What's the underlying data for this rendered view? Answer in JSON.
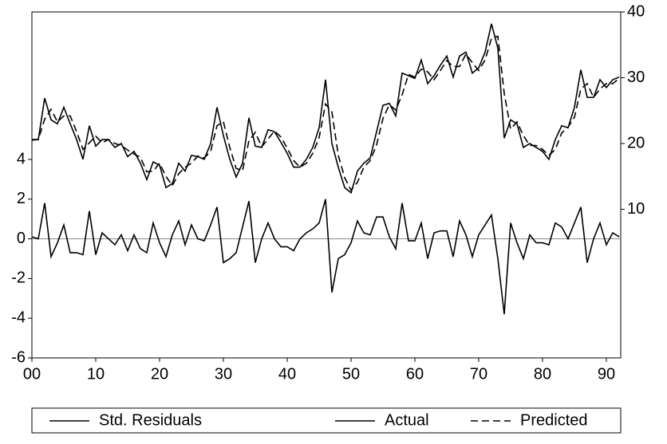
{
  "chart_data": {
    "type": "line",
    "x": [
      0,
      1,
      2,
      3,
      4,
      5,
      6,
      7,
      8,
      9,
      10,
      11,
      12,
      13,
      14,
      15,
      16,
      17,
      18,
      19,
      20,
      21,
      22,
      23,
      24,
      25,
      26,
      27,
      28,
      29,
      30,
      31,
      32,
      33,
      34,
      35,
      36,
      37,
      38,
      39,
      40,
      41,
      42,
      43,
      44,
      45,
      46,
      47,
      48,
      49,
      50,
      51,
      52,
      53,
      54,
      55,
      56,
      57,
      58,
      59,
      60,
      61,
      62,
      63,
      64,
      65,
      66,
      67,
      68,
      69,
      70,
      71,
      72,
      73,
      74,
      75,
      76,
      77,
      78,
      79,
      80,
      81,
      82,
      83,
      84,
      85,
      86,
      87,
      88,
      89,
      90,
      91,
      92
    ],
    "xlim": [
      0,
      92.25
    ],
    "xticks": [
      {
        "value": 0,
        "label": "00"
      },
      10,
      20,
      30,
      40,
      50,
      60,
      70,
      80,
      90
    ],
    "ylim": [
      -6,
      11.43
    ],
    "yticks": [
      -6,
      -4,
      -2,
      0,
      2,
      4
    ],
    "y2lim": [
      -12.6,
      40
    ],
    "y2ticks": [
      10,
      20,
      30,
      40
    ],
    "legend": "bottom",
    "series": [
      {
        "name": "Std. Residuals",
        "color": "#000000",
        "dash": false,
        "axis": "y",
        "values": [
          0.1,
          0,
          1.8,
          -0.9,
          -0.2,
          0.7,
          -0.7,
          -0.7,
          -0.8,
          1.4,
          -0.8,
          0.3,
          0,
          -0.3,
          0.2,
          -0.6,
          0.2,
          -0.5,
          -0.7,
          0.8,
          -0.2,
          -0.9,
          0.2,
          0.9,
          -0.3,
          0.7,
          0,
          -0.1,
          0.7,
          1.6,
          -1.2,
          -1,
          -0.7,
          0.6,
          1.9,
          -1.2,
          0,
          0.8,
          0,
          -0.4,
          -0.4,
          -0.6,
          0,
          0.3,
          0.5,
          0.8,
          2,
          -2.7,
          -1,
          -0.8,
          -0.2,
          0.9,
          0.3,
          0.2,
          1.1,
          1.1,
          0.1,
          -0.5,
          1.8,
          -0.1,
          -0.1,
          0.8,
          -1,
          0.3,
          0.4,
          0.4,
          -0.9,
          0.9,
          0.2,
          -0.9,
          0.2,
          0.7,
          1.2,
          -1,
          -3.8,
          0.8,
          -0.2,
          -1,
          0.2,
          -0.2,
          -0.2,
          -0.3,
          0.8,
          0.6,
          0,
          0.8,
          1.6,
          -1.2,
          0,
          0.8,
          -0.3,
          0.3,
          0.1
        ]
      },
      {
        "name": "Actual",
        "color": "#000000",
        "dash": false,
        "axis": "y2",
        "values": [
          20.6,
          20.6,
          26.9,
          23.6,
          23,
          25.5,
          23,
          20.6,
          17.6,
          22.7,
          19.6,
          20.6,
          20.6,
          19.4,
          20,
          18,
          18.8,
          17,
          14.5,
          17.2,
          16.7,
          13.3,
          13.9,
          17,
          15.8,
          18.2,
          18,
          17.6,
          20,
          25.5,
          21.2,
          17.6,
          14.9,
          17,
          23.9,
          19.6,
          19.4,
          22.1,
          21.8,
          20.2,
          18.5,
          16.4,
          16.4,
          17.6,
          19.4,
          22.4,
          29.7,
          20,
          16.4,
          13.3,
          12.5,
          15.8,
          17,
          17.8,
          21.8,
          25.8,
          26.1,
          24.2,
          30.7,
          30.3,
          29.9,
          32.7,
          29.1,
          30.3,
          31.9,
          33.3,
          30.1,
          33.3,
          33.9,
          30.7,
          31.5,
          33.9,
          38.2,
          34.5,
          20.8,
          23.6,
          23,
          19.4,
          20,
          19.4,
          18.8,
          17.6,
          20.6,
          22.7,
          22.4,
          25.5,
          31.2,
          27,
          27,
          29.7,
          28.5,
          29.7,
          30.1
        ]
      },
      {
        "name": "Predicted",
        "color": "#000000",
        "dash": true,
        "axis": "y2",
        "values": [
          20.5,
          20.6,
          23.7,
          25.2,
          23.3,
          24.2,
          24.2,
          21.8,
          19.1,
          20.1,
          21.1,
          20.1,
          20.6,
          20,
          19.7,
          19,
          18.4,
          17.9,
          15.7,
          15.8,
          17,
          15,
          13.6,
          15.4,
          16.4,
          17,
          18.1,
          17.8,
          18.8,
          22.7,
          23.3,
          19.4,
          16.2,
          15.9,
          20.4,
          21.7,
          19.5,
          20.7,
          21.9,
          21,
          19.3,
          17.4,
          16.4,
          17,
          18.5,
          20.9,
          26,
          24.8,
          18.2,
          14.8,
          12.9,
          14.1,
          16.4,
          17.4,
          19.8,
          23.8,
          25.9,
          25.1,
          27.4,
          30.5,
          30.1,
          31.3,
          30.9,
          29.7,
          31.1,
          32.6,
          31.7,
          31.7,
          33.6,
          32.3,
          31.1,
          32.7,
          36,
          36.3,
          27.6,
          22.2,
          23.3,
          21.2,
          19.7,
          19.7,
          19.1,
          18.2,
          19.1,
          21.6,
          22.5,
          24,
          28.3,
          29.1,
          27,
          28.3,
          29.1,
          29.1,
          29.9
        ]
      }
    ]
  }
}
